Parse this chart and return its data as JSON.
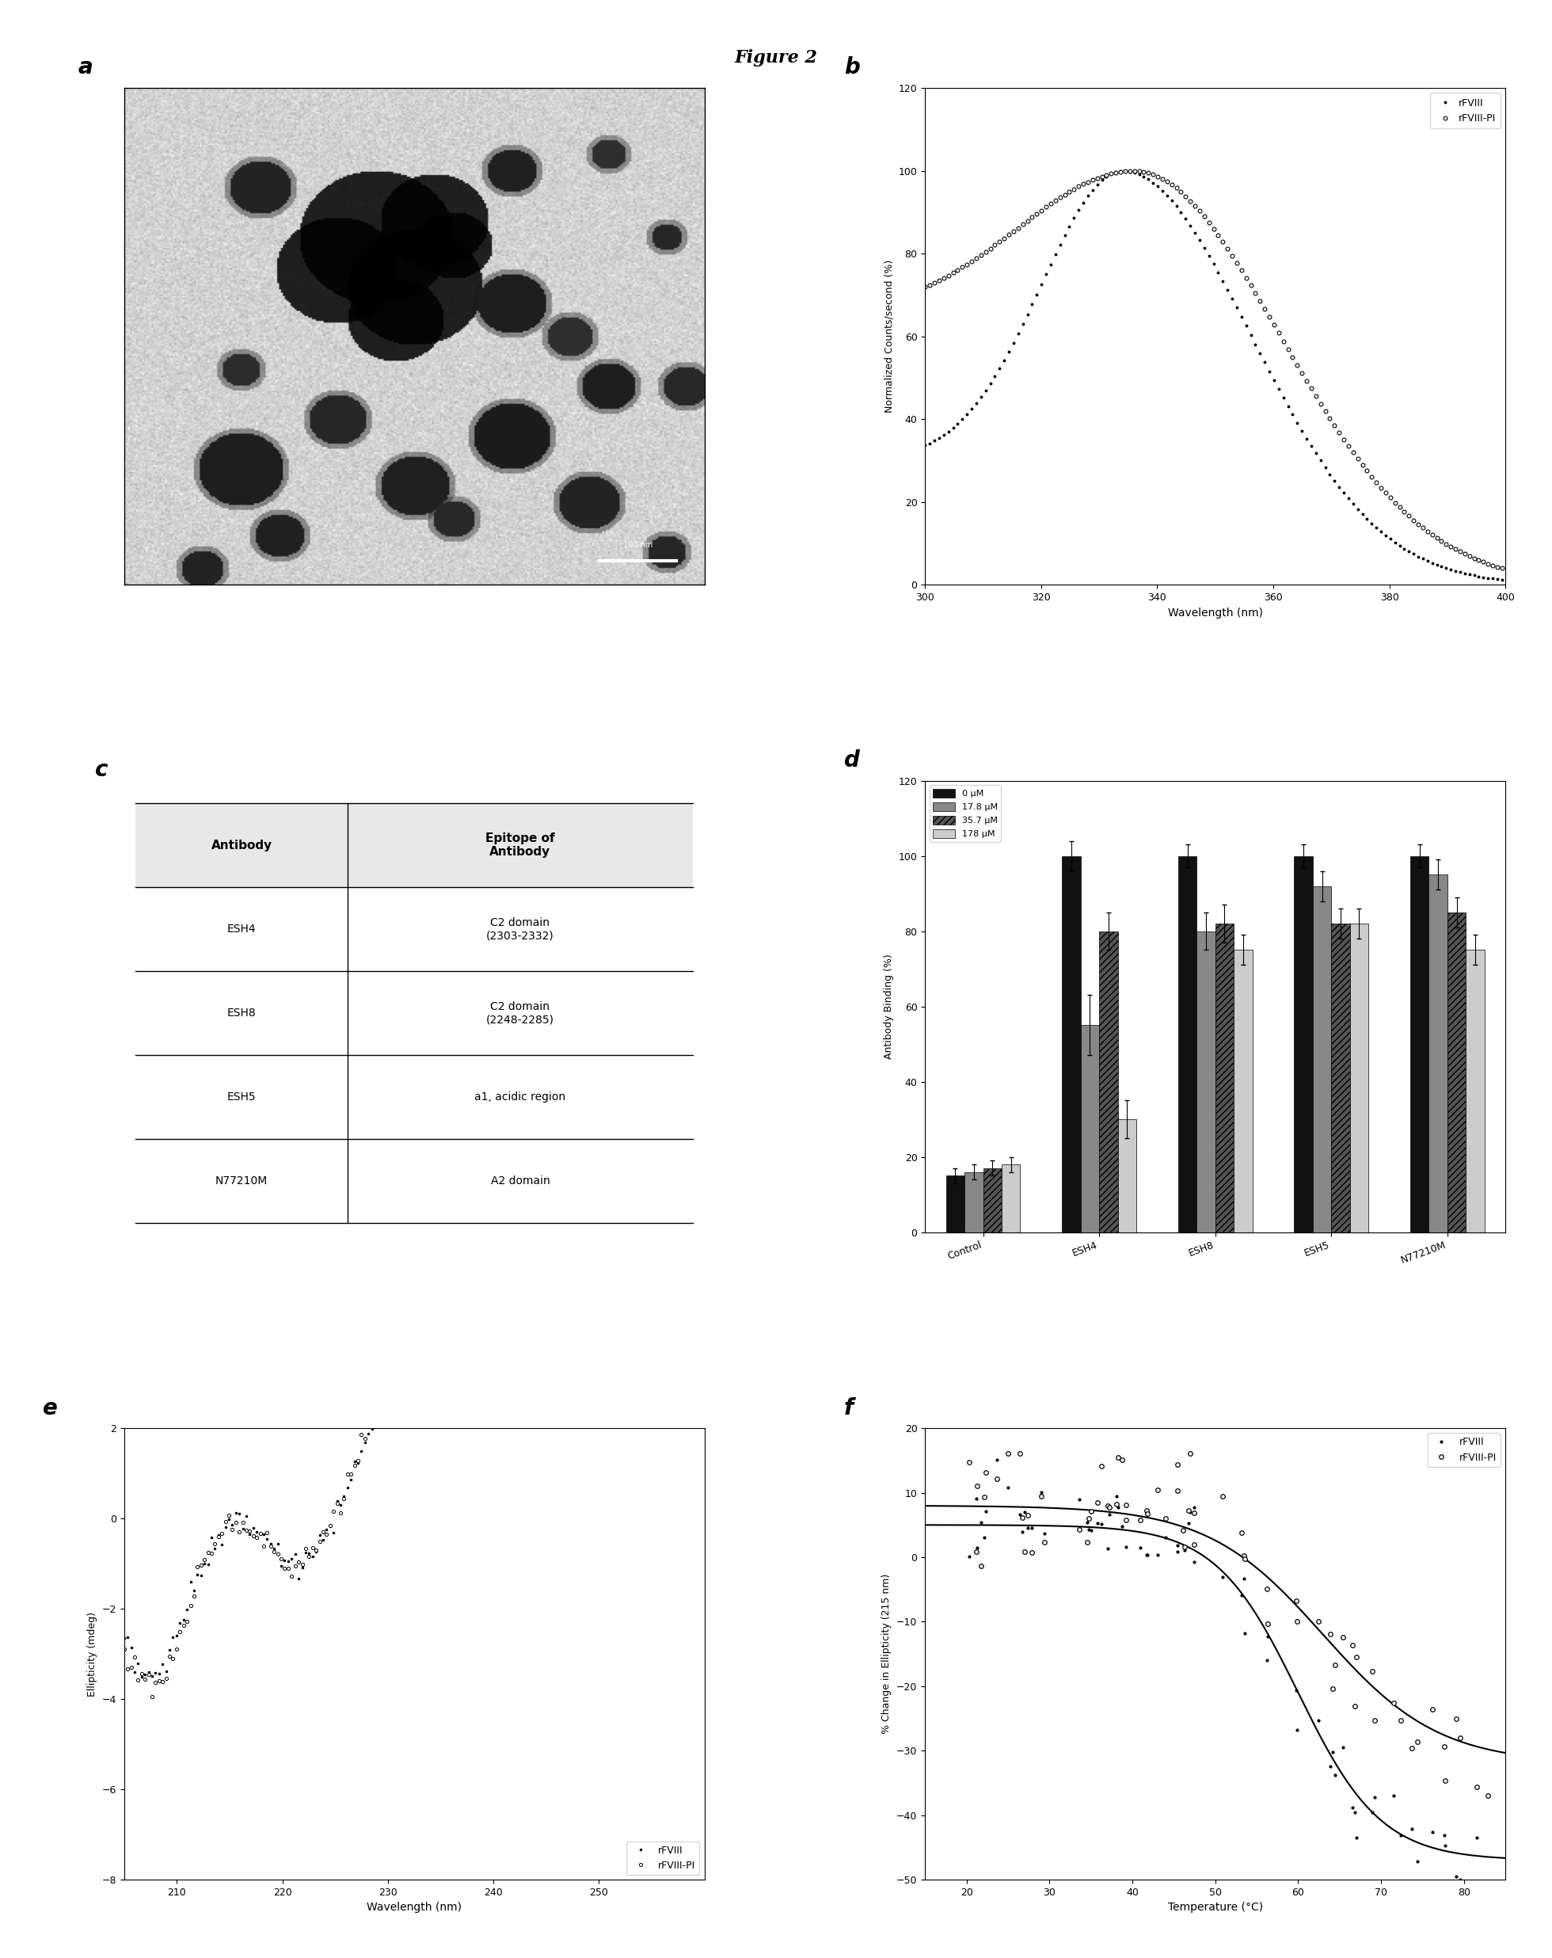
{
  "title": "Figure 2",
  "title_fontsize": 16,
  "background_color": "#ffffff",
  "panel_b": {
    "xlabel": "Wavelength (nm)",
    "ylabel": "Normalized Counts/second (%)",
    "xlim": [
      300,
      400
    ],
    "ylim": [
      0,
      120
    ],
    "xticks": [
      300,
      320,
      340,
      360,
      380,
      400
    ],
    "yticks": [
      0,
      20,
      40,
      60,
      80,
      100,
      120
    ],
    "legend_labels": [
      "rFVIII",
      "rFVIII-PI"
    ]
  },
  "panel_c": {
    "headers": [
      "Antibody",
      "Epitope of\nAntibody"
    ],
    "rows": [
      [
        "ESH4",
        "C2 domain\n(2303-2332)"
      ],
      [
        "ESH8",
        "C2 domain\n(2248-2285)"
      ],
      [
        "ESH5",
        "a1, acidic region"
      ],
      [
        "N77210M",
        "A2 domain"
      ]
    ]
  },
  "panel_d": {
    "ylabel": "Antibody Binding (%)",
    "ylim": [
      0,
      120
    ],
    "yticks": [
      0,
      20,
      40,
      60,
      80,
      100,
      120
    ],
    "categories": [
      "Control",
      "ESH4",
      "ESH8",
      "ESH5",
      "N77210M"
    ],
    "legend_labels": [
      "0 μM",
      "17.8 μM",
      "35.7 μM",
      "178 μM"
    ],
    "bar_colors": [
      "#111111",
      "#888888",
      "#555555",
      "#cccccc"
    ],
    "vals_Control": [
      15,
      16,
      17,
      18
    ],
    "vals_ESH4": [
      100,
      55,
      80,
      30
    ],
    "vals_ESH8": [
      100,
      80,
      82,
      75
    ],
    "vals_ESH5": [
      100,
      92,
      82,
      82
    ],
    "vals_N77210M": [
      100,
      95,
      85,
      75
    ],
    "errs_Control": [
      2,
      2,
      2,
      2
    ],
    "errs_ESH4": [
      4,
      8,
      5,
      5
    ],
    "errs_ESH8": [
      3,
      5,
      5,
      4
    ],
    "errs_ESH5": [
      3,
      4,
      4,
      4
    ],
    "errs_N77210M": [
      3,
      4,
      4,
      4
    ]
  },
  "panel_e": {
    "xlabel": "Wavelength (nm)",
    "ylabel": "Ellipticity (mdeg)",
    "xlim": [
      205,
      260
    ],
    "ylim": [
      -8,
      2
    ],
    "xticks": [
      210,
      220,
      230,
      240,
      250
    ],
    "yticks": [
      -8,
      -6,
      -4,
      -2,
      0,
      2
    ],
    "legend_labels": [
      "rFVIII",
      "rFVIII-PI"
    ]
  },
  "panel_f": {
    "xlabel": "Temperature (°C)",
    "ylabel": "% Change in Ellipticity (215 nm)",
    "xlim": [
      15,
      85
    ],
    "ylim": [
      -50,
      20
    ],
    "xticks": [
      20,
      30,
      40,
      50,
      60,
      70,
      80
    ],
    "yticks": [
      -50,
      -40,
      -30,
      -20,
      -10,
      0,
      10,
      20
    ],
    "legend_labels": [
      "rFVIII",
      "rFVIII-PI"
    ]
  }
}
